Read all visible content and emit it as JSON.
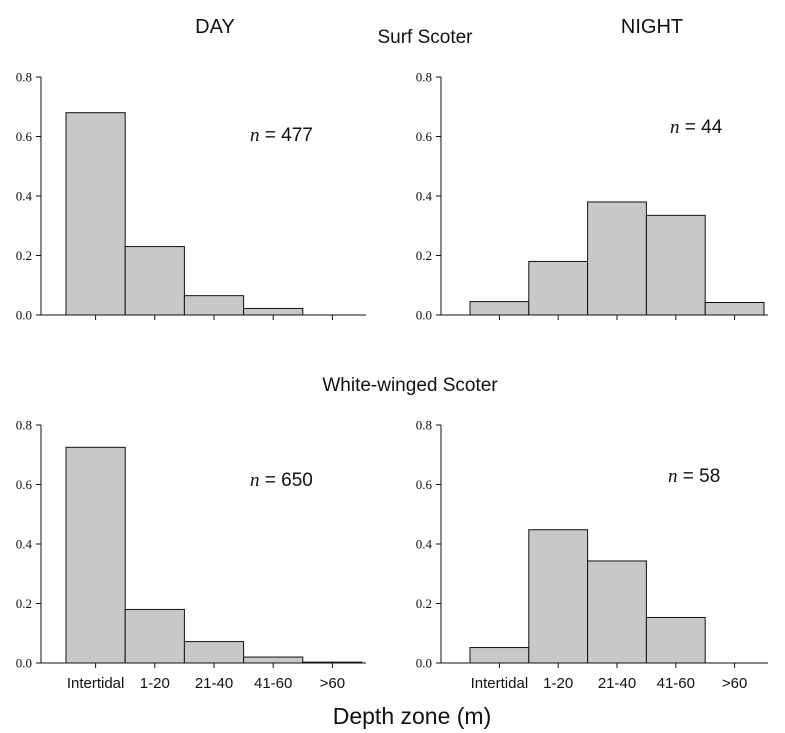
{
  "header": {
    "day_label": "DAY",
    "night_label": "NIGHT",
    "species_top": "Surf Scoter",
    "species_bottom": "White-winged Scoter",
    "xlabel": "Depth zone (m)"
  },
  "colors": {
    "bar_fill": "#c8c8c8",
    "bar_stroke": "#111111"
  },
  "chart_data": [
    {
      "type": "bar",
      "species": "Surf Scoter",
      "period": "DAY",
      "categories": [
        "Intertidal",
        "1-20",
        "21-40",
        "41-60",
        ">60"
      ],
      "values": [
        0.68,
        0.23,
        0.065,
        0.022,
        0.0
      ],
      "ylim": [
        0,
        0.8
      ],
      "yticks": [
        "0.0",
        "0.2",
        "0.4",
        "0.6",
        "0.8"
      ],
      "show_category_labels": false,
      "n_label": "n",
      "n_value": "= 477"
    },
    {
      "type": "bar",
      "species": "Surf Scoter",
      "period": "NIGHT",
      "categories": [
        "Intertidal",
        "1-20",
        "21-40",
        "41-60",
        ">60"
      ],
      "values": [
        0.045,
        0.18,
        0.38,
        0.335,
        0.042
      ],
      "ylim": [
        0,
        0.8
      ],
      "yticks": [
        "0.0",
        "0.2",
        "0.4",
        "0.6",
        "0.8"
      ],
      "show_category_labels": false,
      "n_label": "n",
      "n_value": "= 44"
    },
    {
      "type": "bar",
      "species": "White-winged Scoter",
      "period": "DAY",
      "categories": [
        "Intertidal",
        "1-20",
        "21-40",
        "41-60",
        ">60"
      ],
      "values": [
        0.725,
        0.18,
        0.072,
        0.02,
        0.003
      ],
      "ylim": [
        0,
        0.8
      ],
      "yticks": [
        "0.0",
        "0.2",
        "0.4",
        "0.6",
        "0.8"
      ],
      "show_category_labels": true,
      "n_label": "n",
      "n_value": "= 650"
    },
    {
      "type": "bar",
      "species": "White-winged Scoter",
      "period": "NIGHT",
      "categories": [
        "Intertidal",
        "1-20",
        "21-40",
        "41-60",
        ">60"
      ],
      "values": [
        0.052,
        0.448,
        0.343,
        0.153,
        0.0
      ],
      "ylim": [
        0,
        0.8
      ],
      "yticks": [
        "0.0",
        "0.2",
        "0.4",
        "0.6",
        "0.8"
      ],
      "show_category_labels": true,
      "n_label": "n",
      "n_value": "= 58"
    }
  ]
}
